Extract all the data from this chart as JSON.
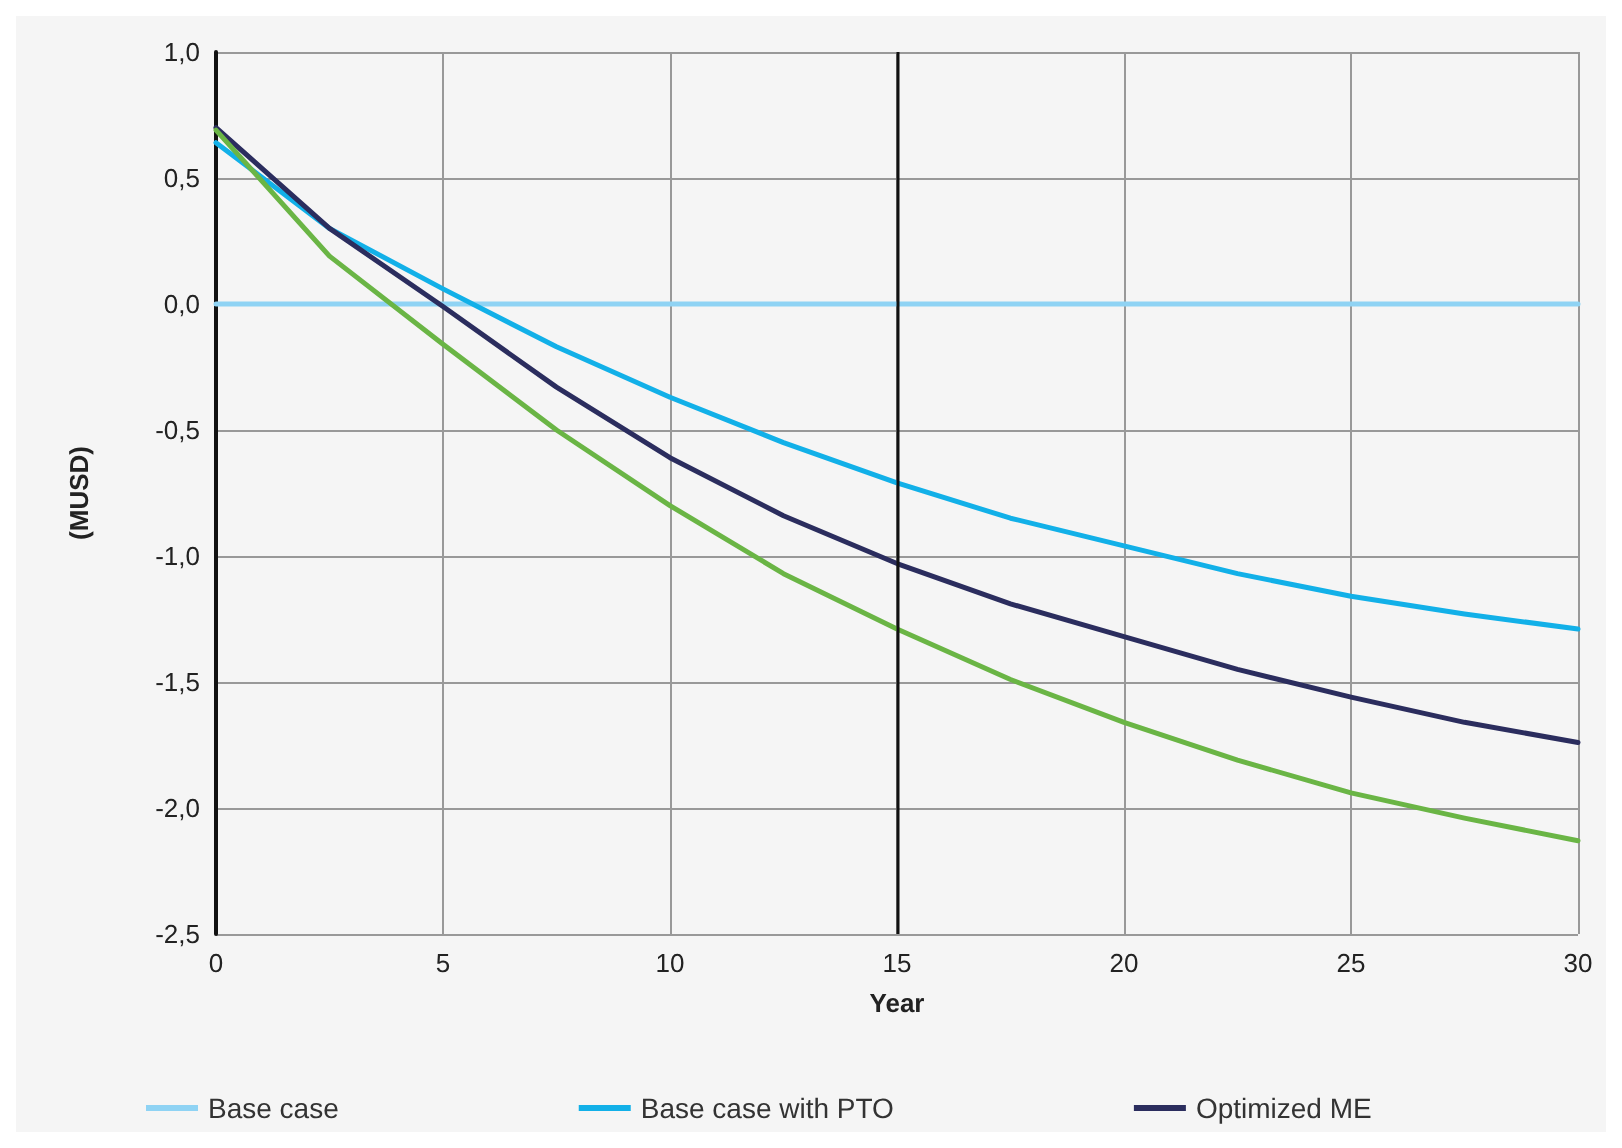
{
  "chart_data": {
    "type": "line",
    "xlabel": "Year",
    "ylabel": "(MUSD)",
    "x": [
      0,
      2.5,
      5,
      7.5,
      10,
      12.5,
      15,
      17.5,
      20,
      22.5,
      25,
      27.5,
      30
    ],
    "series": [
      {
        "name": "Base case",
        "color": "#8fd3f4",
        "values": [
          0,
          0,
          0,
          0,
          0,
          0,
          0,
          0,
          0,
          0,
          0,
          0,
          0
        ]
      },
      {
        "name": "Base case with PTO",
        "color": "#12b0e8",
        "values": [
          0.64,
          0.3,
          0.06,
          -0.17,
          -0.37,
          -0.55,
          -0.71,
          -0.85,
          -0.96,
          -1.07,
          -1.16,
          -1.23,
          -1.29
        ]
      },
      {
        "name": "Optimized ME",
        "color": "#2b2d5e",
        "values": [
          0.7,
          0.3,
          -0.01,
          -0.33,
          -0.61,
          -0.84,
          -1.03,
          -1.19,
          -1.32,
          -1.45,
          -1.56,
          -1.66,
          -1.74
        ]
      },
      {
        "color": "#6ab545",
        "values": [
          0.69,
          0.19,
          -0.16,
          -0.5,
          -0.8,
          -1.07,
          -1.29,
          -1.49,
          -1.66,
          -1.81,
          -1.94,
          -2.04,
          -2.13
        ]
      }
    ],
    "xlim": [
      0,
      30
    ],
    "xticks": [
      0,
      5,
      10,
      15,
      20,
      25,
      30
    ],
    "ylim": [
      -2.5,
      1.0
    ],
    "yticks": [
      {
        "value": -2.5,
        "label": "-2,5"
      },
      {
        "value": -2.0,
        "label": "-2,0"
      },
      {
        "value": -1.5,
        "label": "-1,5"
      },
      {
        "value": -1.0,
        "label": "-1,0"
      },
      {
        "value": -0.5,
        "label": "-0,5"
      },
      {
        "value": 0,
        "label": "0,0"
      },
      {
        "value": 0.5,
        "label": "0,5"
      },
      {
        "value": 1.0,
        "label": "1,0"
      }
    ],
    "ref_lines": [
      {
        "axis": "x",
        "value": 15,
        "color": "#111111"
      }
    ],
    "grid": true,
    "legend": "bottom",
    "marker": "none",
    "line_style": "solid"
  }
}
